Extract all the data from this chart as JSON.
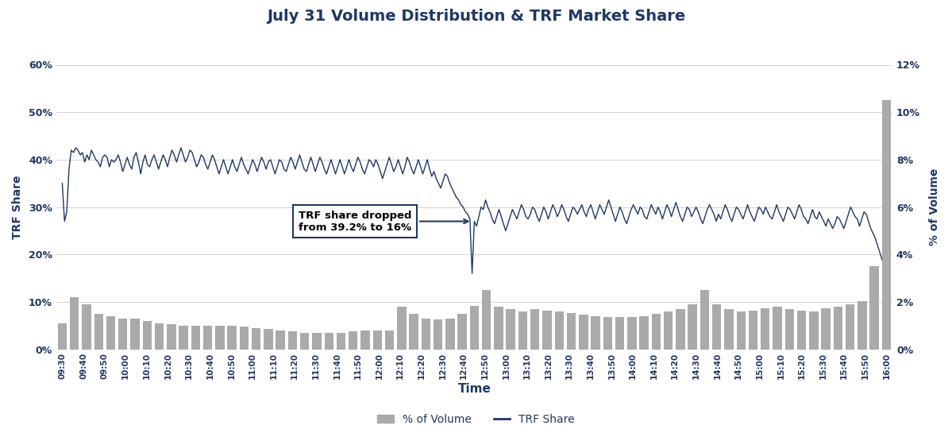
{
  "title": "July 31 Volume Distribution & TRF Market Share",
  "xlabel": "Time",
  "ylabel_left": "TRF Share",
  "ylabel_right": "% of Volume",
  "background_color": "#ffffff",
  "title_color": "#1f3864",
  "axis_color": "#1f3864",
  "line_color": "#1f3864",
  "bar_color": "#aaaaaa",
  "annotation_text": "TRF share dropped\nfrom 39.2% to 16%",
  "time_labels": [
    "09:30",
    "09:40",
    "09:50",
    "10:00",
    "10:10",
    "10:20",
    "10:30",
    "10:40",
    "10:50",
    "11:00",
    "11:10",
    "11:20",
    "11:30",
    "11:40",
    "11:50",
    "12:00",
    "12:10",
    "12:20",
    "12:30",
    "12:40",
    "12:50",
    "13:00",
    "13:10",
    "13:20",
    "13:30",
    "13:40",
    "13:50",
    "14:00",
    "14:10",
    "14:20",
    "14:30",
    "14:40",
    "14:50",
    "15:00",
    "15:10",
    "15:20",
    "15:30",
    "15:40",
    "15:50",
    "16:00"
  ],
  "bar_values": [
    1.1,
    2.2,
    1.9,
    1.5,
    1.4,
    1.3,
    1.3,
    1.2,
    1.1,
    1.05,
    1.0,
    1.0,
    1.0,
    1.0,
    1.0,
    0.95,
    0.9,
    0.85,
    0.8,
    0.75,
    0.7,
    0.7,
    0.7,
    0.7,
    0.75,
    0.8,
    0.8,
    0.8,
    1.8,
    1.5,
    1.3,
    1.25,
    1.3,
    1.5,
    1.85,
    2.5,
    1.8,
    1.7,
    1.6,
    1.7,
    1.65,
    1.6,
    1.55,
    1.45,
    1.4,
    1.35,
    1.35,
    1.35,
    1.4,
    1.5,
    1.6,
    1.7,
    1.9,
    2.5,
    1.9,
    1.7,
    1.6,
    1.65,
    1.75,
    1.8,
    1.7,
    1.65,
    1.6,
    1.75,
    1.8,
    1.9,
    2.05,
    3.5,
    10.5
  ],
  "trf_values": [
    35.0,
    27.0,
    29.0,
    38.0,
    42.0,
    41.5,
    42.5,
    42.0,
    41.0,
    41.5,
    39.5,
    41.0,
    40.0,
    42.0,
    41.0,
    40.0,
    39.5,
    38.5,
    40.5,
    41.0,
    40.5,
    38.5,
    40.0,
    39.5,
    40.0,
    41.0,
    39.5,
    37.5,
    39.0,
    40.5,
    39.0,
    38.0,
    40.5,
    41.5,
    39.5,
    37.0,
    39.5,
    41.0,
    39.0,
    38.5,
    40.0,
    41.0,
    39.5,
    38.0,
    39.5,
    41.0,
    40.0,
    38.5,
    40.5,
    42.0,
    41.0,
    39.5,
    41.0,
    42.5,
    41.0,
    39.5,
    40.5,
    42.0,
    41.5,
    40.0,
    38.5,
    39.5,
    41.0,
    40.5,
    39.0,
    38.0,
    39.5,
    41.0,
    40.0,
    38.5,
    37.0,
    38.5,
    40.0,
    38.5,
    37.0,
    38.5,
    40.0,
    38.5,
    37.5,
    39.0,
    40.5,
    39.0,
    38.0,
    37.0,
    38.5,
    40.0,
    39.0,
    37.5,
    39.0,
    40.5,
    39.5,
    38.0,
    39.5,
    40.0,
    38.5,
    37.0,
    38.5,
    40.0,
    39.5,
    38.0,
    37.5,
    39.0,
    40.5,
    39.5,
    38.0,
    39.5,
    41.0,
    39.5,
    38.0,
    37.5,
    39.0,
    40.5,
    39.0,
    37.5,
    39.0,
    40.5,
    39.5,
    38.0,
    37.0,
    38.5,
    40.0,
    38.5,
    37.0,
    38.5,
    40.0,
    38.5,
    37.0,
    38.5,
    40.0,
    38.5,
    37.5,
    39.0,
    40.5,
    39.5,
    38.0,
    37.0,
    38.5,
    40.0,
    39.5,
    38.5,
    40.0,
    39.0,
    37.5,
    36.0,
    37.5,
    39.0,
    40.5,
    39.0,
    37.5,
    38.5,
    40.0,
    38.5,
    37.0,
    38.5,
    40.5,
    39.5,
    38.0,
    37.0,
    38.5,
    40.0,
    38.5,
    37.0,
    38.5,
    40.0,
    38.0,
    36.5,
    37.5,
    36.0,
    35.0,
    34.0,
    35.5,
    37.0,
    36.5,
    35.0,
    34.0,
    33.0,
    32.0,
    31.5,
    30.5,
    30.0,
    29.0,
    28.5,
    27.5,
    16.0,
    27.0,
    26.0,
    28.0,
    30.0,
    29.5,
    31.5,
    30.0,
    29.0,
    27.5,
    26.5,
    28.0,
    29.5,
    28.0,
    26.5,
    25.0,
    26.5,
    28.0,
    29.5,
    28.5,
    27.5,
    29.0,
    30.5,
    29.5,
    28.0,
    27.5,
    28.5,
    30.0,
    29.5,
    28.0,
    27.0,
    28.5,
    30.0,
    29.0,
    27.5,
    29.0,
    30.5,
    29.5,
    28.0,
    29.0,
    30.5,
    29.5,
    28.0,
    27.0,
    28.5,
    30.0,
    29.5,
    28.5,
    29.5,
    30.5,
    29.0,
    28.0,
    29.5,
    30.5,
    29.0,
    27.5,
    29.0,
    30.5,
    29.5,
    28.5,
    30.0,
    31.5,
    30.0,
    28.5,
    27.0,
    28.5,
    30.0,
    29.0,
    27.5,
    26.5,
    28.0,
    29.5,
    30.5,
    29.5,
    28.5,
    30.0,
    29.5,
    28.0,
    27.5,
    29.0,
    30.5,
    29.5,
    28.5,
    30.0,
    29.0,
    27.5,
    29.0,
    30.5,
    29.5,
    28.0,
    29.5,
    31.0,
    29.5,
    28.0,
    27.0,
    28.5,
    30.0,
    29.5,
    28.0,
    29.0,
    30.0,
    29.0,
    27.5,
    26.5,
    28.0,
    29.5,
    30.5,
    29.5,
    28.5,
    27.0,
    28.5,
    27.5,
    29.0,
    30.5,
    29.5,
    28.0,
    27.0,
    28.5,
    30.0,
    29.5,
    28.5,
    27.5,
    29.0,
    30.5,
    29.0,
    28.0,
    27.0,
    28.5,
    30.0,
    29.5,
    28.5,
    30.0,
    29.0,
    28.0,
    27.5,
    29.0,
    30.5,
    29.0,
    28.0,
    27.0,
    28.5,
    30.0,
    29.5,
    28.5,
    27.5,
    29.0,
    30.5,
    29.5,
    28.0,
    27.5,
    26.5,
    28.0,
    29.5,
    28.0,
    27.5,
    29.0,
    28.0,
    27.0,
    26.0,
    27.5,
    26.5,
    25.5,
    26.5,
    28.0,
    27.5,
    26.5,
    25.5,
    27.0,
    28.5,
    30.0,
    29.0,
    28.0,
    27.5,
    26.0,
    27.5,
    29.0,
    28.5,
    27.0,
    25.5,
    24.5,
    23.5,
    22.0,
    20.5,
    19.0,
    17.5,
    16.5
  ],
  "ylim_left": [
    0,
    60
  ],
  "ylim_right": [
    0,
    12
  ],
  "yticks_left": [
    0,
    10,
    20,
    30,
    40,
    50,
    60
  ],
  "yticks_right": [
    0,
    2,
    4,
    6,
    8,
    10,
    12
  ]
}
